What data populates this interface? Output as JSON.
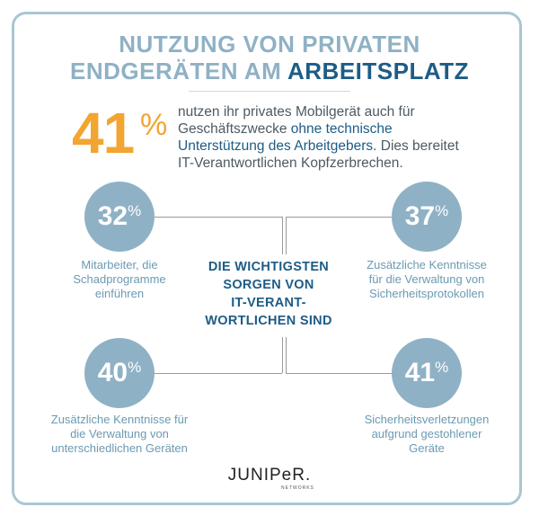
{
  "title": {
    "line1": "NUTZUNG VON PRIVATEN",
    "line2_part1": "ENDGERÄTEN AM ",
    "line2_highlight": "ARBEITSPLATZ"
  },
  "headline_stat": {
    "value": "41",
    "unit": "%",
    "text_before": "nutzen ihr privates Mobilgerät auch für Geschäftszwecke ",
    "text_accent": "ohne technische Unterstützung des Arbeitgebers.",
    "text_after": " Dies bereitet IT-Verantwortlichen Kopfzerbrechen."
  },
  "center_label": [
    "DIE WICHTIGSTEN",
    "SORGEN VON",
    "IT-VERANT-",
    "WORTLICHEN SIND"
  ],
  "stats": [
    {
      "value": "32",
      "unit": "%",
      "lines": [
        "Mitarbeiter, die",
        "Schadprogramme",
        "einführen"
      ]
    },
    {
      "value": "37",
      "unit": "%",
      "lines": [
        "Zusätzliche Kenntnisse",
        "für die Verwaltung von",
        "Sicherheitsprotokollen"
      ]
    },
    {
      "value": "40",
      "unit": "%",
      "lines": [
        "Zusätzliche Kenntnisse für",
        "die Verwaltung von",
        "unterschiedlichen Geräten"
      ]
    },
    {
      "value": "41",
      "unit": "%",
      "lines": [
        "Sicherheitsverletzungen",
        "aufgrund gestohlener",
        "Geräte"
      ]
    }
  ],
  "logo": {
    "word": "JUNIPeR.",
    "sub": "NETWORKS"
  },
  "colors": {
    "accent_orange": "#f2a530",
    "dark_blue": "#1e5c86",
    "light_blue": "#8fb1c5",
    "border": "#a9c6d3"
  }
}
